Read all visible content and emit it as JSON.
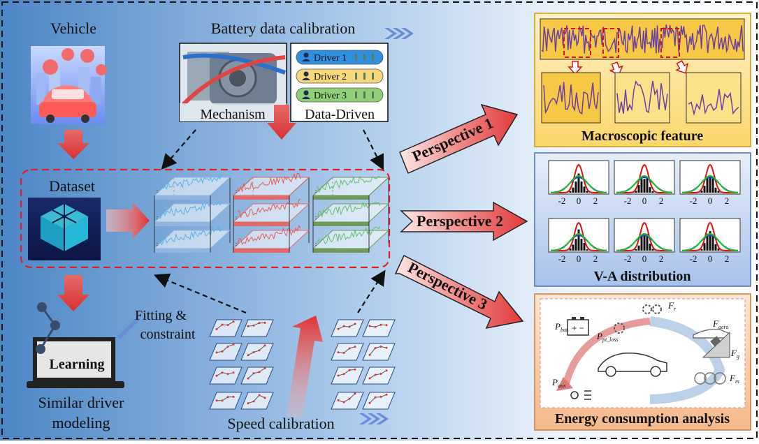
{
  "labels": {
    "vehicle": "Vehicle",
    "battery_calibration": "Battery data calibration",
    "mechanism": "Mechanism",
    "data_driven": "Data-Driven",
    "dataset": "Dataset",
    "learning": "Learning",
    "similar_driver_line1": "Similar driver",
    "similar_driver_line2": "modeling",
    "fitting_line1": "Fitting &",
    "fitting_line2": "constraint",
    "speed_calibration": "Speed calibration",
    "perspective1": "Perspective 1",
    "perspective2": "Perspective 2",
    "perspective3": "Perspective 3",
    "macroscopic_feature": "Macroscopic feature",
    "va_distribution": "V-A distribution",
    "energy_analysis": "Energy consumption analysis"
  },
  "drivers": [
    {
      "label": "Driver 1",
      "color": "#2f8fe0"
    },
    {
      "label": "Driver 2",
      "color": "#f6d77a"
    },
    {
      "label": "Driver 3",
      "color": "#8fcf7a"
    }
  ],
  "va_ticks": [
    "-2",
    "0",
    "2"
  ],
  "energy_terms": {
    "p_bat_main": "P",
    "p_bat_sub": "bat",
    "p_pt_main": "P",
    "p_pt_sub": "pt_loss",
    "p_aux_main": "P",
    "p_aux_sub": "aux",
    "f_r_main": "F",
    "f_r_sub": "r",
    "f_aero_main": "F",
    "f_aero_sub": "aero",
    "f_g_main": "F",
    "f_g_sub": "g",
    "f_m_main": "F",
    "f_m_sub": "m"
  },
  "colors": {
    "macro_panel": "#fbd66a",
    "va_panel": "#c9d9f3",
    "energy_panel": "#f6c9a0",
    "arrow_red": "#e23a3a",
    "dataset_blue": "#5ab0e8",
    "dataset_red": "#e85a5a",
    "dataset_green": "#5fbf6a",
    "signal_purple": "#6a3fa0"
  }
}
